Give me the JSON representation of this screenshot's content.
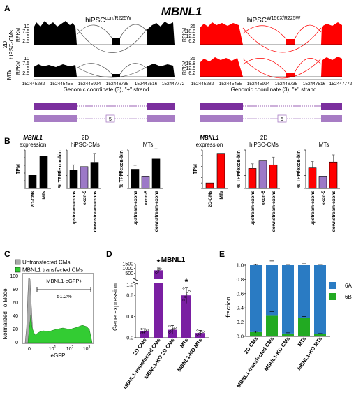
{
  "figure": {
    "gene_title": "MBNL1",
    "panels": {
      "A": "A",
      "B": "B",
      "C": "C",
      "D": "D",
      "E": "E"
    }
  },
  "panel_a": {
    "left_title_main": "hiPSC",
    "left_title_sup": "corr/R225W",
    "right_title_main": "hiPSC",
    "right_title_sup": "W156X/R225W",
    "row_label_top_1": "2D",
    "row_label_top_2": "hiPSC-CMs",
    "row_label_bottom": "MTs",
    "axis_label": "RPKM",
    "left_ticks": [
      "10",
      "7.5",
      "5",
      "2.5"
    ],
    "left_ticks_mts": [
      "10",
      "7.5",
      "5",
      "2.5"
    ],
    "right_ticks": [
      "25",
      "18.8",
      "12.5",
      "6.2"
    ],
    "right_ticks_mts": [
      "25",
      "18.8",
      "12.5",
      "6.2"
    ],
    "x_ticks": [
      "152445282",
      "152445455",
      "152445994",
      "152446735",
      "152447516",
      "152447772"
    ],
    "x_label": "Genomic coordinate (3), \"+\" strand",
    "exon_label": "5",
    "colors": {
      "left": "#000000",
      "right": "#ff0000",
      "transcript": "#7b2f9e",
      "transcript_light": "#a77cc4"
    }
  },
  "panel_b": {
    "expression_title_1": "MBNL1",
    "expression_title_2": "expression",
    "tpm_label": "TPM",
    "pct_label": "% TPM/exon-bin",
    "hipsc_title_1": "2D",
    "hipsc_title_2": "hiPSC-CMs",
    "mts_title": "MTs",
    "tpm_categories": [
      "2D-CMs",
      "MTs"
    ],
    "bin_categories": [
      "upstream-exons",
      "exon-5",
      "downstream-exons"
    ],
    "colors": {
      "black": "#000000",
      "red": "#ff0000",
      "purple": "#9c79c7"
    }
  },
  "panel_c": {
    "legend_untransfected": "Untransfected CMs",
    "legend_transfected": "MBNL1 transfected CMs",
    "gate_label": "MBNL1-eGFP+",
    "gate_value": "51.2%",
    "y_label": "Normalized To Mode",
    "x_label": "eGFP",
    "y_ticks": [
      "100",
      "80",
      "60",
      "40",
      "20",
      "0"
    ],
    "x_ticks": [
      "0",
      "10",
      "10",
      "10"
    ],
    "x_tick_exponents": [
      "",
      "1",
      "2",
      "3"
    ],
    "colors": {
      "gray": "#a9a9a9",
      "green": "#33cc33"
    }
  },
  "panel_d": {
    "title": "MBNL1",
    "y_label": "Gene expression",
    "y_ticks_top": [
      "1500",
      "1000",
      "500"
    ],
    "y_ticks_bottom": [
      "1.0",
      "0.8",
      "0.4",
      "0.0"
    ],
    "categories": [
      "2D CMs",
      "MBNL1-transfected CMs",
      "MBNL1-KO 2D CMs",
      "MTs",
      "MBNL1-KO MTs"
    ],
    "star": "*",
    "color": "#7a1fa2"
  },
  "panel_e": {
    "y_label": "fraction",
    "y_ticks": [
      "1.0",
      "0.8",
      "0.6",
      "0.4",
      "0.2",
      "0.0"
    ],
    "categories": [
      "2D CMs",
      "MBNL1-transfected CMs",
      "MBNL1-KO CMs",
      "MTs",
      "MBNL1-KO MTs"
    ],
    "legend": [
      "6A",
      "6B"
    ],
    "colors": {
      "6A": "#2a7bc3",
      "6B": "#22aa22"
    }
  },
  "chart_data": [
    {
      "type": "bar",
      "id": "B-left-tpm",
      "categories": [
        "2D-CMs",
        "MTs"
      ],
      "values": [
        17,
        42
      ],
      "ylabel": "TPM"
    },
    {
      "type": "bar",
      "id": "B-left-2D",
      "categories": [
        "upstream-exons",
        "exon-5",
        "downstream-exons"
      ],
      "values": [
        72,
        85,
        102
      ],
      "errors": [
        20,
        0,
        35
      ],
      "ylabel": "% TPM/exon-bin"
    },
    {
      "type": "bar",
      "id": "B-left-MTs",
      "categories": [
        "upstream-exons",
        "exon-5",
        "downstream-exons"
      ],
      "values": [
        75,
        48,
        115
      ],
      "errors": [
        15,
        0,
        40
      ],
      "ylabel": "% TPM/exon-bin"
    },
    {
      "type": "bar",
      "id": "B-right-tpm",
      "categories": [
        "2D-CMs",
        "MTs"
      ],
      "values": [
        10,
        64
      ],
      "ylabel": "TPM"
    },
    {
      "type": "bar",
      "id": "B-right-2D",
      "categories": [
        "upstream-exons",
        "exon-5",
        "downstream-exons"
      ],
      "values": [
        78,
        110,
        92
      ],
      "errors": [
        18,
        0,
        30
      ],
      "ylabel": "% TPM/exon-bin"
    },
    {
      "type": "bar",
      "id": "B-right-MTs",
      "categories": [
        "upstream-exons",
        "exon-5",
        "downstream-exons"
      ],
      "values": [
        80,
        48,
        103
      ],
      "errors": [
        25,
        0,
        28
      ],
      "ylabel": "% TPM/exon-bin"
    },
    {
      "type": "bar",
      "id": "D",
      "title": "MBNL1",
      "categories": [
        "2D CMs",
        "MBNL1-transfected CMs",
        "MBNL1-KO 2D CMs",
        "MTs",
        "MBNL1-KO MTs"
      ],
      "values": [
        0.12,
        800,
        0.15,
        0.8,
        0.09
      ],
      "errors": [
        0.05,
        250,
        0.08,
        0.15,
        0.05
      ],
      "significant": [
        false,
        true,
        false,
        true,
        false
      ],
      "ylabel": "Gene expression"
    },
    {
      "type": "bar",
      "id": "E",
      "categories": [
        "2D CMs",
        "MBNL1-transfected CMs",
        "MBNL1-KO CMs",
        "MTs",
        "MBNL1-KO MTs"
      ],
      "series": [
        {
          "name": "6A",
          "values": [
            0.94,
            0.71,
            0.96,
            0.74,
            0.97
          ]
        },
        {
          "name": "6B",
          "values": [
            0.06,
            0.29,
            0.04,
            0.26,
            0.03
          ]
        }
      ],
      "errors_top": [
        0.01,
        0.06,
        0.01,
        0.02,
        0.01
      ],
      "errors_6B": [
        0.01,
        0.06,
        0.01,
        0.02,
        0.01
      ],
      "ylabel": "fraction",
      "ylim": [
        0,
        1.0
      ]
    }
  ]
}
